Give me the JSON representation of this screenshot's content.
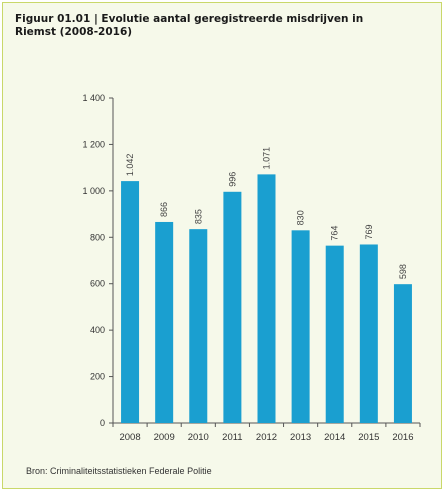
{
  "title_line1": "Figuur 01.01 | Evolutie aantal geregistreerde misdrijven in",
  "title_line2": "Riemst (2008-2016)",
  "source": "Bron: Criminaliteitsstatistieken Federale Politie",
  "colors": {
    "bar": "#1a9fd0",
    "axis": "#555555",
    "background": "#f6f9ea",
    "border": "#c9d86a"
  },
  "chart_data": {
    "type": "bar",
    "categories": [
      "2008",
      "2009",
      "2010",
      "2011",
      "2012",
      "2013",
      "2014",
      "2015",
      "2016"
    ],
    "values": [
      1042,
      866,
      835,
      996,
      1071,
      830,
      764,
      769,
      598
    ],
    "data_labels": [
      "1.042",
      "866",
      "835",
      "996",
      "1.071",
      "830",
      "764",
      "769",
      "598"
    ],
    "ylim": [
      0,
      1400
    ],
    "yticks": [
      0,
      200,
      400,
      600,
      800,
      1000,
      1200,
      1400
    ],
    "ytick_labels": [
      "0",
      "200",
      "400",
      "600",
      "800",
      "1 000",
      "1 200",
      "1 400"
    ],
    "grid": false
  }
}
